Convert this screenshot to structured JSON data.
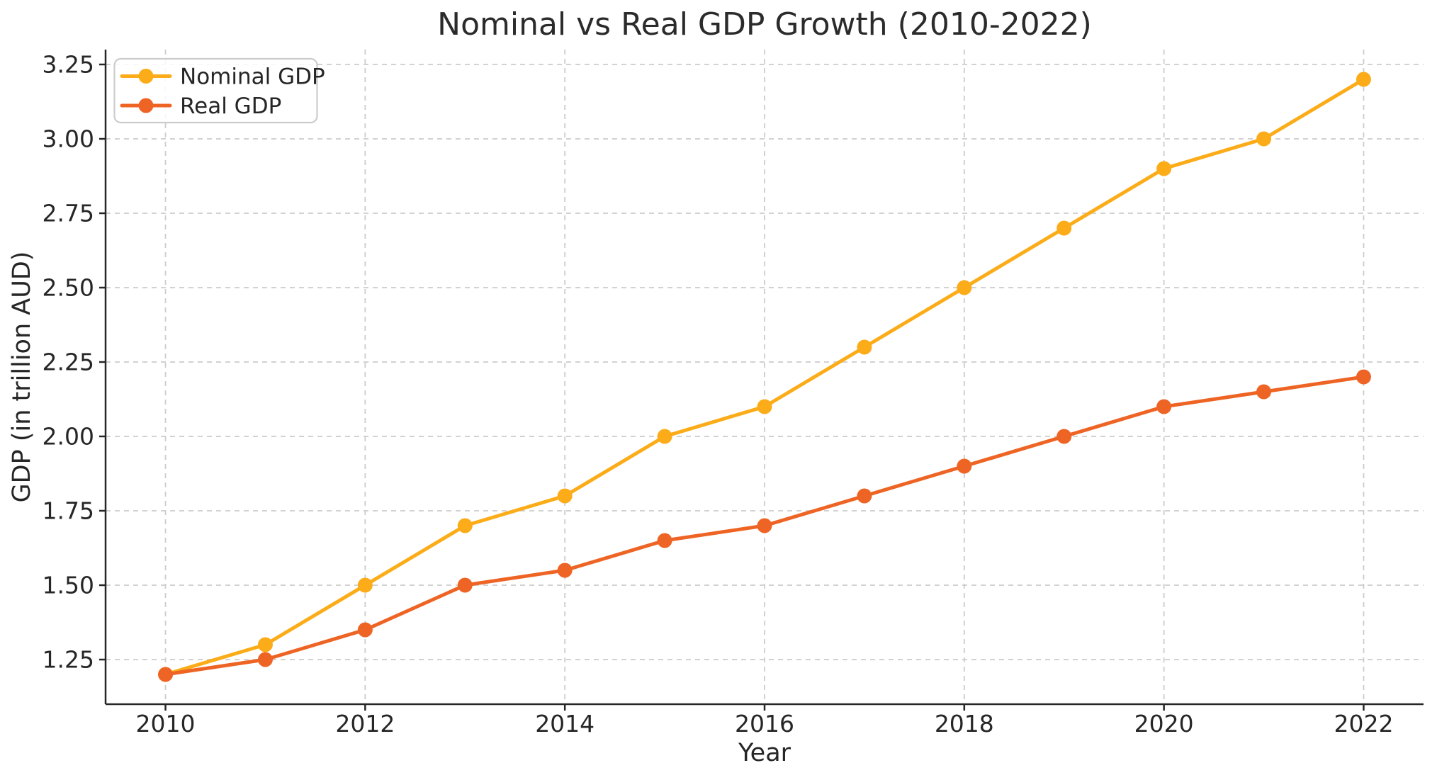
{
  "style": {
    "background": "#ffffff",
    "text_color": "#262626",
    "title_color": "#2b2b2b",
    "grid_color": "#cccccc",
    "spine_color": "#262626",
    "legend_border_color": "#cccccc",
    "legend_bg": "#ffffff"
  },
  "chart_data": {
    "type": "line",
    "title": "Nominal vs Real GDP Growth (2010-2022)",
    "xlabel": "Year",
    "ylabel": "GDP (in trillion AUD)",
    "x": [
      2010,
      2011,
      2012,
      2013,
      2014,
      2015,
      2016,
      2017,
      2018,
      2019,
      2020,
      2021,
      2022
    ],
    "series": [
      {
        "name": "Nominal GDP",
        "color": "#FBAC18",
        "marker": "circle",
        "values": [
          1.2,
          1.3,
          1.5,
          1.7,
          1.8,
          2.0,
          2.1,
          2.3,
          2.5,
          2.7,
          2.9,
          3.0,
          3.2
        ]
      },
      {
        "name": "Real GDP",
        "color": "#EE6424",
        "marker": "circle",
        "values": [
          1.2,
          1.25,
          1.35,
          1.5,
          1.55,
          1.65,
          1.7,
          1.8,
          1.9,
          2.0,
          2.1,
          2.15,
          2.2
        ]
      }
    ],
    "xticks": [
      2010,
      2012,
      2014,
      2016,
      2018,
      2020,
      2022
    ],
    "yticks": [
      "1.25",
      "1.50",
      "1.75",
      "2.00",
      "2.25",
      "2.50",
      "2.75",
      "3.00",
      "3.25"
    ],
    "xlim": [
      2009.4,
      2022.6
    ],
    "ylim": [
      1.1,
      3.3
    ],
    "grid": "dashed",
    "legend": {
      "position": "upper-left",
      "entries": [
        "Nominal GDP",
        "Real GDP"
      ]
    }
  }
}
